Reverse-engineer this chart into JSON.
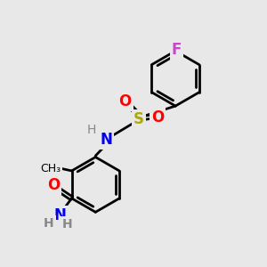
{
  "bg_color": "#e8e8e8",
  "line_color": "#000000",
  "line_width": 2.0,
  "figsize": [
    3.0,
    3.0
  ],
  "dpi": 100,
  "atoms": {
    "F": {
      "color": "#cc44cc",
      "fontsize": 12,
      "fontweight": "bold"
    },
    "O": {
      "color": "#ff0000",
      "fontsize": 12,
      "fontweight": "bold"
    },
    "S": {
      "color": "#aaaa00",
      "fontsize": 12,
      "fontweight": "bold"
    },
    "N": {
      "color": "#0000ee",
      "fontsize": 12,
      "fontweight": "bold"
    },
    "H": {
      "color": "#888888",
      "fontsize": 10,
      "fontweight": "normal"
    },
    "Me": {
      "color": "#000000",
      "fontsize": 9,
      "fontweight": "normal"
    }
  }
}
